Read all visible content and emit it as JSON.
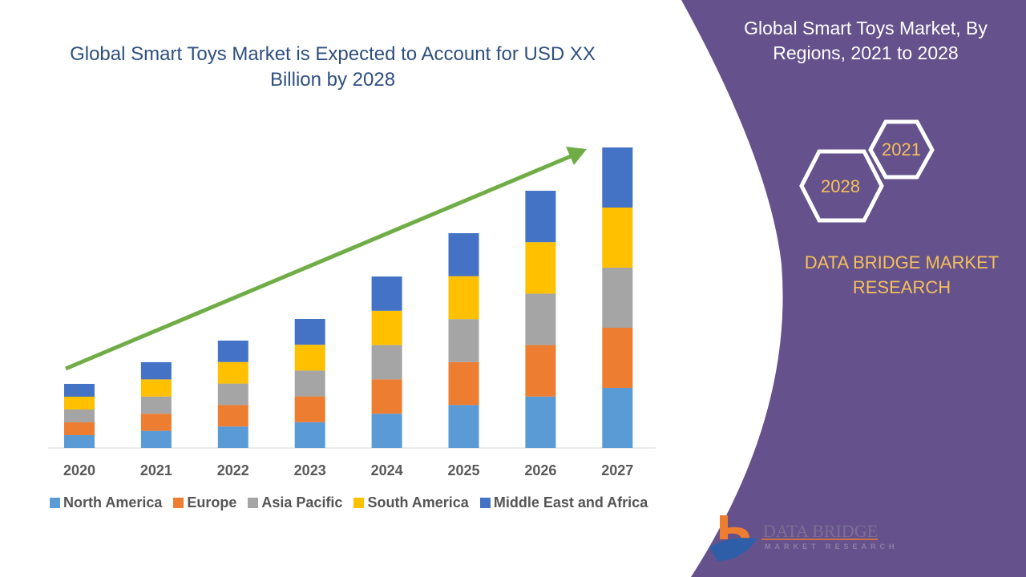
{
  "title": "Global Smart Toys Market is Expected to Account for USD XX Billion by 2028",
  "side_panel": {
    "title": "Global Smart Toys Market, By Regions, 2021 to 2028",
    "hex_labels": [
      "2021",
      "2028"
    ],
    "brand": "DATA BRIDGE MARKET RESEARCH",
    "logo_text": "DATA BRIDGE",
    "logo_subtext": "MARKET RESEARCH",
    "panel_color": "#65528c"
  },
  "chart_data": {
    "type": "bar",
    "stacked": true,
    "title": "Global Smart Toys Market is Expected to Account for USD XX Billion by 2028",
    "categories": [
      "2020",
      "2021",
      "2022",
      "2023",
      "2024",
      "2025",
      "2026",
      "2027"
    ],
    "series": [
      {
        "name": "North America",
        "color": "#5b9bd5",
        "values": [
          1.6,
          2.14,
          2.68,
          3.22,
          4.28,
          5.36,
          6.42,
          7.5
        ]
      },
      {
        "name": "Europe",
        "color": "#ed7d31",
        "values": [
          1.6,
          2.14,
          2.68,
          3.22,
          4.28,
          5.36,
          6.42,
          7.5
        ]
      },
      {
        "name": "Asia Pacific",
        "color": "#a5a5a5",
        "values": [
          1.6,
          2.14,
          2.68,
          3.22,
          4.28,
          5.36,
          6.42,
          7.5
        ]
      },
      {
        "name": "South America",
        "color": "#ffc000",
        "values": [
          1.6,
          2.14,
          2.68,
          3.22,
          4.28,
          5.36,
          6.42,
          7.5
        ]
      },
      {
        "name": "Middle East and Africa",
        "color": "#4472c4",
        "values": [
          1.6,
          2.14,
          2.68,
          3.22,
          4.28,
          5.36,
          6.42,
          7.5
        ]
      }
    ],
    "y_axis_shown": false,
    "grid": false,
    "legend": "bottom",
    "trend_arrow_color": "#70ad47"
  }
}
